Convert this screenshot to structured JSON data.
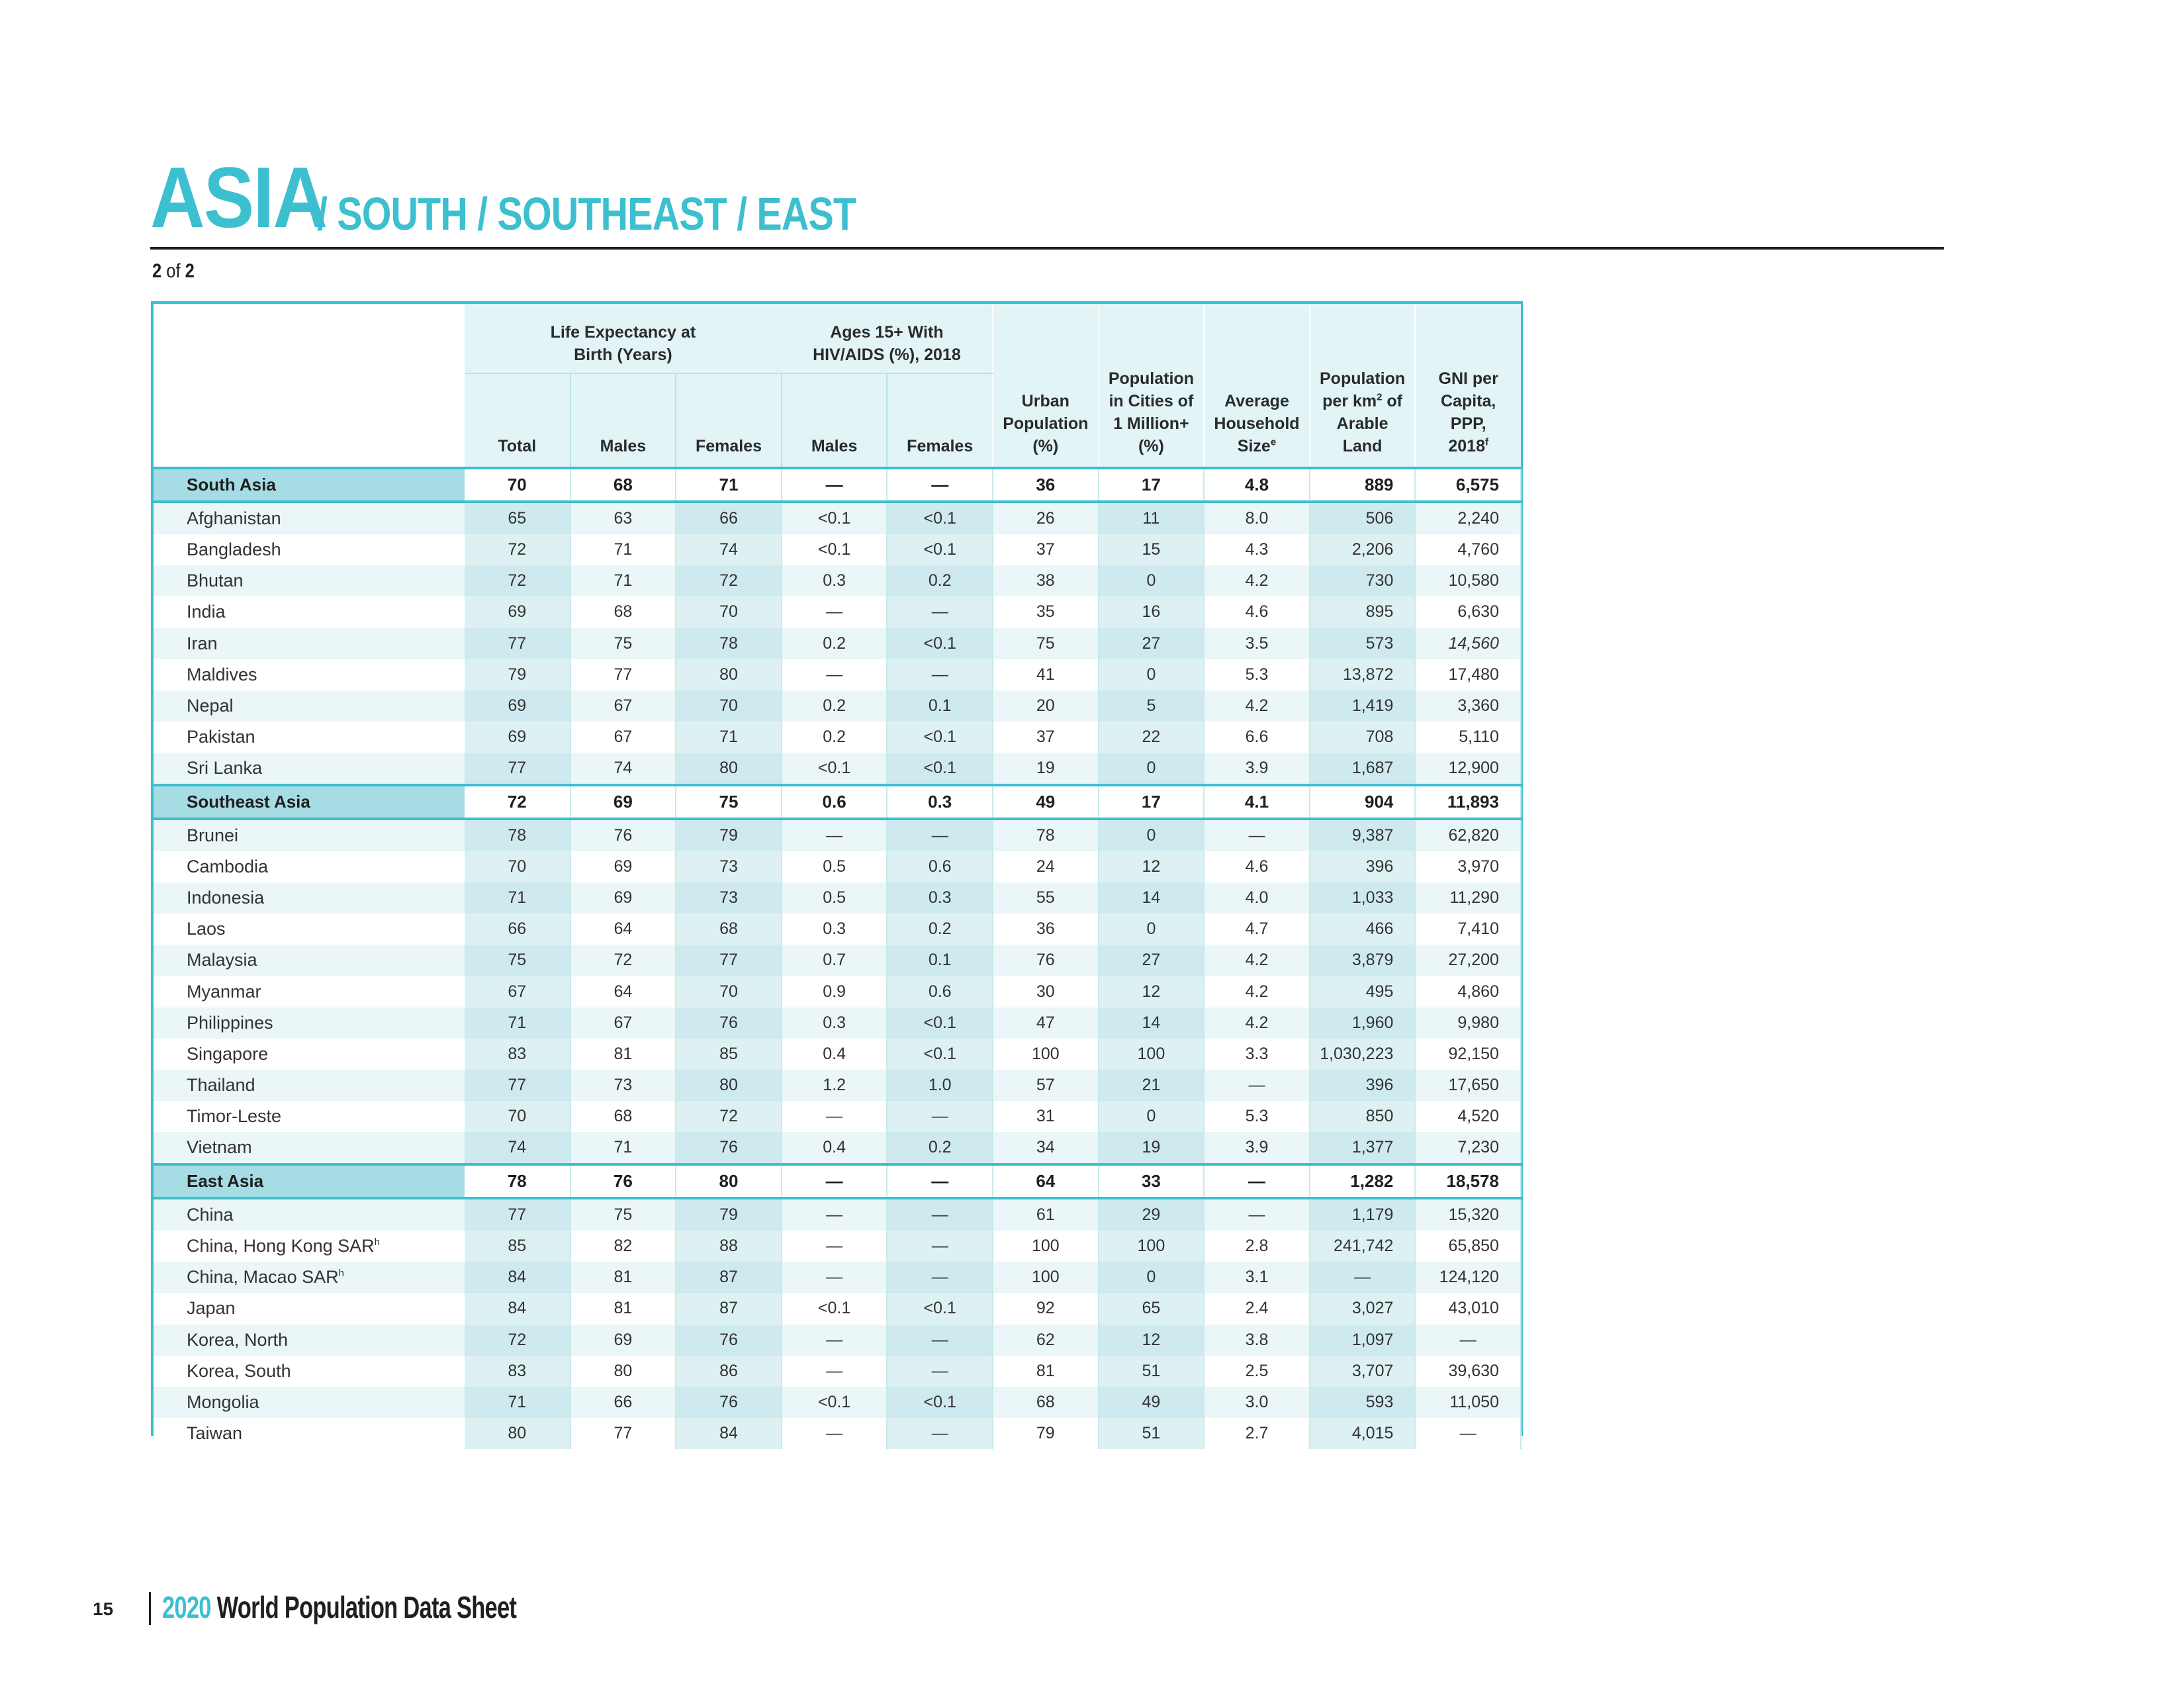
{
  "title": {
    "main": "ASIA",
    "sub": "/ SOUTH / SOUTHEAST / EAST"
  },
  "page_of": {
    "current": "2",
    "of": "of",
    "total": "2"
  },
  "header": {
    "group_life": "Life Expectancy at Birth (Years)",
    "group_hiv": "Ages 15+ With HIV/AIDS (%), 2018",
    "total": "Total",
    "males": "Males",
    "females": "Females",
    "hiv_males": "Males",
    "hiv_females": "Females",
    "urban": "Urban Population (%)",
    "cities": "Population in Cities of 1 Million+ (%)",
    "household": "Average Household Size",
    "household_sup": "e",
    "arable_pre": "Population per km",
    "arable_sup": "2",
    "arable_post": " of Arable Land",
    "gni": "GNI per Capita, PPP, 2018",
    "gni_sup": "f"
  },
  "rows": [
    {
      "type": "region",
      "name": "South Asia",
      "v": [
        "70",
        "68",
        "71",
        "—",
        "—",
        "36",
        "17",
        "4.8",
        "889",
        "6,575"
      ]
    },
    {
      "type": "country",
      "name": "Afghanistan",
      "v": [
        "65",
        "63",
        "66",
        "<0.1",
        "<0.1",
        "26",
        "11",
        "8.0",
        "506",
        "2,240"
      ]
    },
    {
      "type": "country",
      "name": "Bangladesh",
      "v": [
        "72",
        "71",
        "74",
        "<0.1",
        "<0.1",
        "37",
        "15",
        "4.3",
        "2,206",
        "4,760"
      ]
    },
    {
      "type": "country",
      "name": "Bhutan",
      "v": [
        "72",
        "71",
        "72",
        "0.3",
        "0.2",
        "38",
        "0",
        "4.2",
        "730",
        "10,580"
      ]
    },
    {
      "type": "country",
      "name": "India",
      "v": [
        "69",
        "68",
        "70",
        "—",
        "—",
        "35",
        "16",
        "4.6",
        "895",
        "6,630"
      ]
    },
    {
      "type": "country",
      "name": "Iran",
      "v": [
        "77",
        "75",
        "78",
        "0.2",
        "<0.1",
        "75",
        "27",
        "3.5",
        "573",
        "14,560"
      ],
      "italic_gni": true
    },
    {
      "type": "country",
      "name": "Maldives",
      "v": [
        "79",
        "77",
        "80",
        "—",
        "—",
        "41",
        "0",
        "5.3",
        "13,872",
        "17,480"
      ]
    },
    {
      "type": "country",
      "name": "Nepal",
      "v": [
        "69",
        "67",
        "70",
        "0.2",
        "0.1",
        "20",
        "5",
        "4.2",
        "1,419",
        "3,360"
      ]
    },
    {
      "type": "country",
      "name": "Pakistan",
      "v": [
        "69",
        "67",
        "71",
        "0.2",
        "<0.1",
        "37",
        "22",
        "6.6",
        "708",
        "5,110"
      ]
    },
    {
      "type": "country",
      "name": "Sri Lanka",
      "v": [
        "77",
        "74",
        "80",
        "<0.1",
        "<0.1",
        "19",
        "0",
        "3.9",
        "1,687",
        "12,900"
      ]
    },
    {
      "type": "region",
      "name": "Southeast Asia",
      "v": [
        "72",
        "69",
        "75",
        "0.6",
        "0.3",
        "49",
        "17",
        "4.1",
        "904",
        "11,893"
      ]
    },
    {
      "type": "country",
      "name": "Brunei",
      "v": [
        "78",
        "76",
        "79",
        "—",
        "—",
        "78",
        "0",
        "—",
        "9,387",
        "62,820"
      ]
    },
    {
      "type": "country",
      "name": "Cambodia",
      "v": [
        "70",
        "69",
        "73",
        "0.5",
        "0.6",
        "24",
        "12",
        "4.6",
        "396",
        "3,970"
      ]
    },
    {
      "type": "country",
      "name": "Indonesia",
      "v": [
        "71",
        "69",
        "73",
        "0.5",
        "0.3",
        "55",
        "14",
        "4.0",
        "1,033",
        "11,290"
      ]
    },
    {
      "type": "country",
      "name": "Laos",
      "v": [
        "66",
        "64",
        "68",
        "0.3",
        "0.2",
        "36",
        "0",
        "4.7",
        "466",
        "7,410"
      ]
    },
    {
      "type": "country",
      "name": "Malaysia",
      "v": [
        "75",
        "72",
        "77",
        "0.7",
        "0.1",
        "76",
        "27",
        "4.2",
        "3,879",
        "27,200"
      ]
    },
    {
      "type": "country",
      "name": "Myanmar",
      "v": [
        "67",
        "64",
        "70",
        "0.9",
        "0.6",
        "30",
        "12",
        "4.2",
        "495",
        "4,860"
      ]
    },
    {
      "type": "country",
      "name": "Philippines",
      "v": [
        "71",
        "67",
        "76",
        "0.3",
        "<0.1",
        "47",
        "14",
        "4.2",
        "1,960",
        "9,980"
      ]
    },
    {
      "type": "country",
      "name": "Singapore",
      "v": [
        "83",
        "81",
        "85",
        "0.4",
        "<0.1",
        "100",
        "100",
        "3.3",
        "1,030,223",
        "92,150"
      ]
    },
    {
      "type": "country",
      "name": "Thailand",
      "v": [
        "77",
        "73",
        "80",
        "1.2",
        "1.0",
        "57",
        "21",
        "—",
        "396",
        "17,650"
      ]
    },
    {
      "type": "country",
      "name": "Timor-Leste",
      "v": [
        "70",
        "68",
        "72",
        "—",
        "—",
        "31",
        "0",
        "5.3",
        "850",
        "4,520"
      ]
    },
    {
      "type": "country",
      "name": "Vietnam",
      "v": [
        "74",
        "71",
        "76",
        "0.4",
        "0.2",
        "34",
        "19",
        "3.9",
        "1,377",
        "7,230"
      ]
    },
    {
      "type": "region",
      "name": "East Asia",
      "v": [
        "78",
        "76",
        "80",
        "—",
        "—",
        "64",
        "33",
        "—",
        "1,282",
        "18,578"
      ]
    },
    {
      "type": "country",
      "name": "China",
      "v": [
        "77",
        "75",
        "79",
        "—",
        "—",
        "61",
        "29",
        "—",
        "1,179",
        "15,320"
      ]
    },
    {
      "type": "country",
      "name": "China, Hong Kong SAR",
      "sup": "h",
      "v": [
        "85",
        "82",
        "88",
        "—",
        "—",
        "100",
        "100",
        "2.8",
        "241,742",
        "65,850"
      ]
    },
    {
      "type": "country",
      "name": "China, Macao SAR",
      "sup": "h",
      "v": [
        "84",
        "81",
        "87",
        "—",
        "—",
        "100",
        "0",
        "3.1",
        "—",
        "124,120"
      ]
    },
    {
      "type": "country",
      "name": "Japan",
      "v": [
        "84",
        "81",
        "87",
        "<0.1",
        "<0.1",
        "92",
        "65",
        "2.4",
        "3,027",
        "43,010"
      ]
    },
    {
      "type": "country",
      "name": "Korea, North",
      "v": [
        "72",
        "69",
        "76",
        "—",
        "—",
        "62",
        "12",
        "3.8",
        "1,097",
        "—"
      ]
    },
    {
      "type": "country",
      "name": "Korea, South",
      "v": [
        "83",
        "80",
        "86",
        "—",
        "—",
        "81",
        "51",
        "2.5",
        "3,707",
        "39,630"
      ]
    },
    {
      "type": "country",
      "name": "Mongolia",
      "v": [
        "71",
        "66",
        "76",
        "<0.1",
        "<0.1",
        "68",
        "49",
        "3.0",
        "593",
        "11,050"
      ]
    },
    {
      "type": "country",
      "name": "Taiwan",
      "v": [
        "80",
        "77",
        "84",
        "—",
        "—",
        "79",
        "51",
        "2.7",
        "4,015",
        "—"
      ]
    }
  ],
  "footer": {
    "page": "15",
    "year": "2020",
    "title": "World Population Data Sheet"
  },
  "colors": {
    "accent": "#3cbfcf",
    "region_fill": "#a6dce3",
    "stripe": "#eaf6f7",
    "header_fill": "#e2f4f5"
  }
}
